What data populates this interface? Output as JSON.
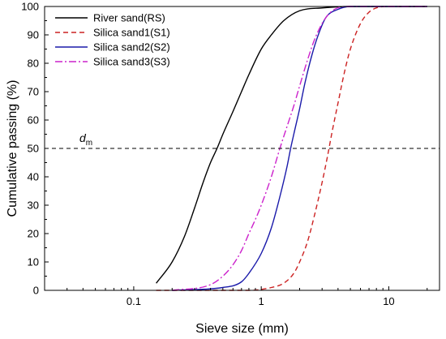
{
  "chart_data": {
    "type": "line",
    "xlabel": "Sieve size (mm)",
    "ylabel": "Cumulative passing (%)",
    "x_scale": "log",
    "xlim": [
      0.02,
      25
    ],
    "ylim": [
      0,
      100
    ],
    "x_ticks": [
      {
        "value": 0.1,
        "label": "0.1"
      },
      {
        "value": 1,
        "label": "1"
      },
      {
        "value": 10,
        "label": "10"
      }
    ],
    "y_ticks": [
      0,
      10,
      20,
      30,
      40,
      50,
      60,
      70,
      80,
      90,
      100
    ],
    "legend_position": "top-left",
    "grid": false,
    "series": [
      {
        "name": "River sand(RS)",
        "color": "#000000",
        "dash": "solid",
        "x": [
          0.15,
          0.2,
          0.25,
          0.3,
          0.35,
          0.4,
          0.45,
          0.5,
          0.6,
          0.7,
          0.8,
          1.0,
          1.2,
          1.5,
          2.0,
          3.0,
          5.0,
          10,
          20
        ],
        "y": [
          2.5,
          10,
          19,
          29,
          38,
          45,
          50,
          55,
          63,
          70,
          76,
          85,
          90,
          95,
          98.5,
          99.5,
          100,
          100,
          100
        ]
      },
      {
        "name": "Silica sand1(S1)",
        "color": "#cc2222",
        "dash": "dashed",
        "x": [
          0.15,
          0.8,
          1.2,
          1.5,
          1.8,
          2.0,
          2.3,
          2.6,
          3.0,
          3.3,
          3.6,
          4.0,
          4.5,
          5.0,
          6.0,
          7.0,
          8.0,
          10,
          20
        ],
        "y": [
          0,
          0,
          1,
          2.5,
          6,
          10,
          17,
          26,
          38,
          47,
          56,
          66,
          77,
          85,
          94,
          98,
          99.5,
          100,
          100
        ]
      },
      {
        "name": "Silica sand2(S2)",
        "color": "#1a1aaa",
        "dash": "solid",
        "x": [
          0.2,
          0.5,
          0.7,
          0.8,
          1.0,
          1.2,
          1.4,
          1.6,
          1.7,
          1.8,
          2.0,
          2.2,
          2.5,
          2.8,
          3.2,
          4.0,
          5.0,
          20
        ],
        "y": [
          0,
          1,
          3,
          6,
          13,
          22,
          33,
          44,
          50,
          55,
          64,
          73,
          83,
          90,
          96,
          99,
          100,
          100
        ]
      },
      {
        "name": "Silica sand3(S3)",
        "color": "#cc22cc",
        "dash": "dashdot",
        "x": [
          0.2,
          0.4,
          0.5,
          0.6,
          0.7,
          0.8,
          0.9,
          1.0,
          1.2,
          1.4,
          1.6,
          1.8,
          2.0,
          2.3,
          2.6,
          3.0,
          3.5,
          4.5,
          20
        ],
        "y": [
          0,
          2,
          5,
          9,
          14,
          20,
          25,
          30,
          40,
          50,
          58,
          65,
          72,
          81,
          88,
          94,
          98,
          100,
          100
        ]
      }
    ],
    "reference_lines": [
      {
        "type": "horizontal",
        "y": 50,
        "style": "dashed",
        "color": "#000000",
        "label": "d",
        "label_sub": "m"
      }
    ]
  }
}
